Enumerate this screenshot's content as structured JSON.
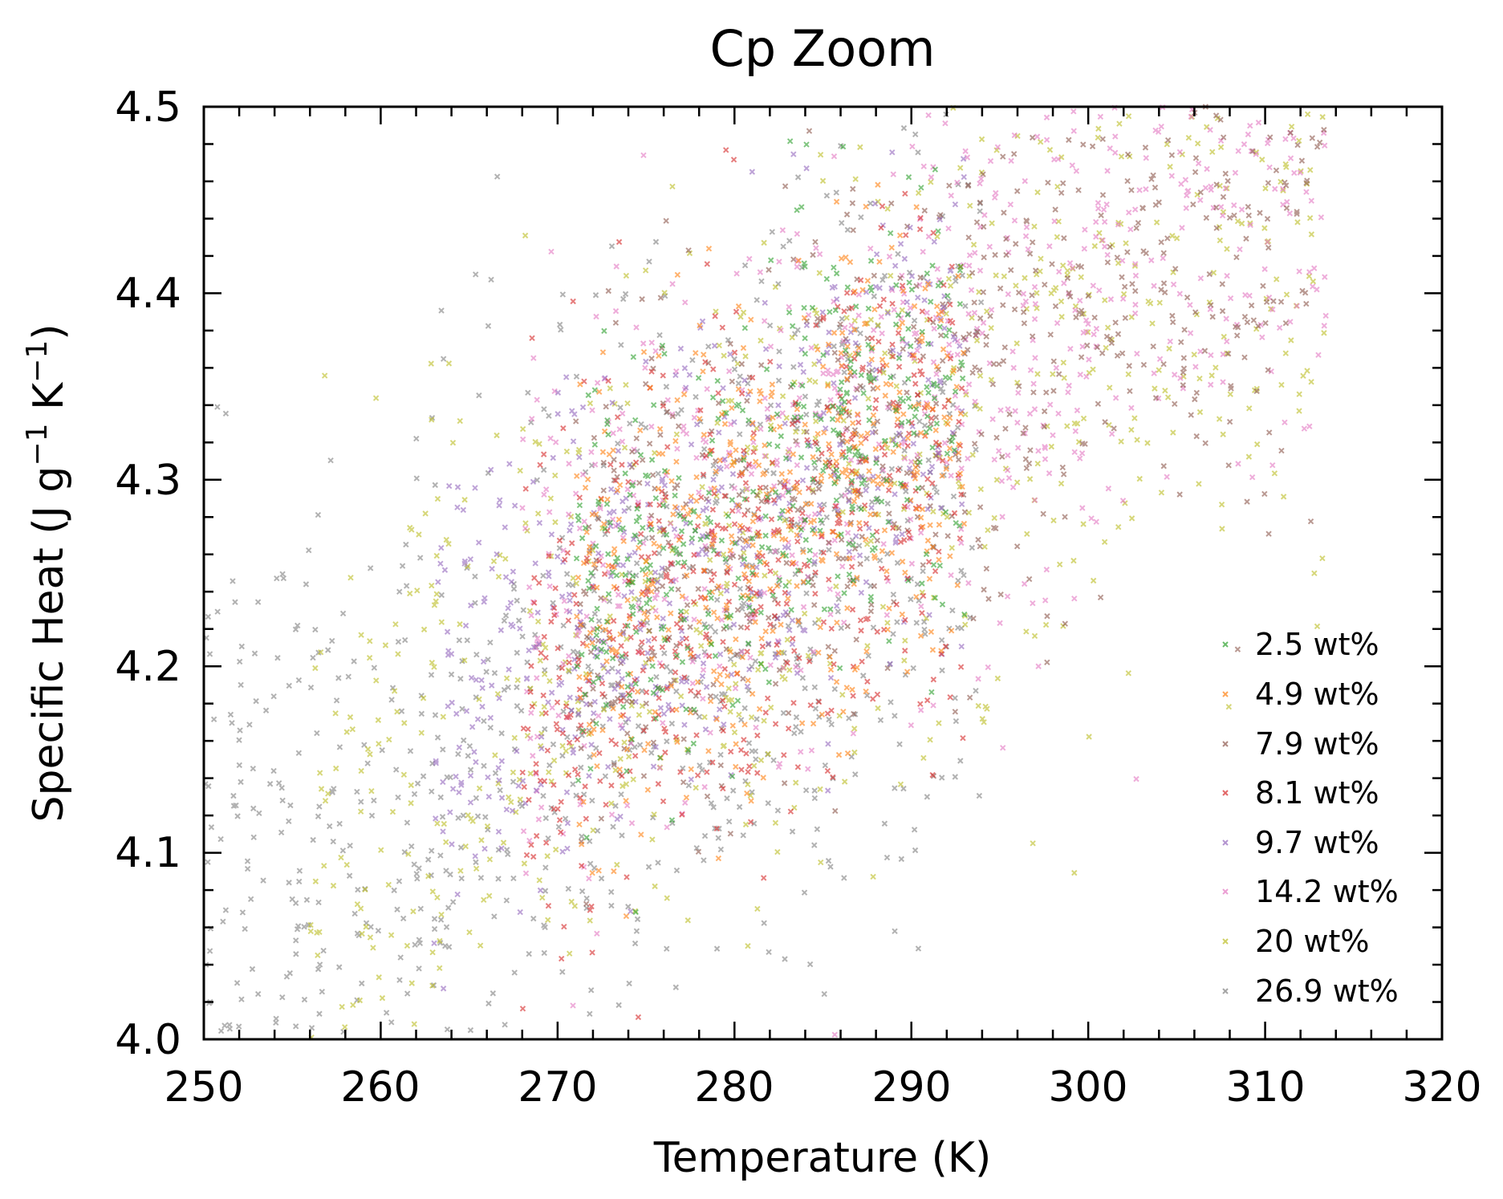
{
  "chart_data": {
    "type": "scatter",
    "title": "Cp Zoom",
    "xlabel": "Temperature (K)",
    "ylabel_parts": {
      "prefix": "Specific Heat (J g",
      "sup1": "−1",
      "middle": " K",
      "sup2": "−1",
      "suffix": ")"
    },
    "xlim": [
      250,
      320
    ],
    "ylim": [
      4.0,
      4.5
    ],
    "x_ticks": [
      "250",
      "260",
      "270",
      "280",
      "290",
      "300",
      "310",
      "320"
    ],
    "y_ticks": [
      "4.0",
      "4.1",
      "4.2",
      "4.3",
      "4.4",
      "4.5"
    ],
    "marker": "x",
    "legend_position": "lower-right",
    "grid": false,
    "series": [
      {
        "name": "2.5 wt%",
        "color": "#2ca02c",
        "n": 420,
        "x_range": [
          271,
          293
        ],
        "y_center": 4.3,
        "y_spread": 0.13
      },
      {
        "name": "4.9 wt%",
        "color": "#ff7f0e",
        "n": 480,
        "x_range": [
          271,
          293
        ],
        "y_center": 4.28,
        "y_spread": 0.15
      },
      {
        "name": "7.9 wt%",
        "color": "#8c564b",
        "n": 650,
        "x_range": [
          271,
          313.5
        ],
        "y_center": 4.29,
        "y_spread": 0.16
      },
      {
        "name": "8.1 wt%",
        "color": "#d62728",
        "n": 520,
        "x_range": [
          268,
          293
        ],
        "y_center": 4.27,
        "y_spread": 0.15
      },
      {
        "name": "9.7 wt%",
        "color": "#9467bd",
        "n": 480,
        "x_range": [
          263,
          293
        ],
        "y_center": 4.29,
        "y_spread": 0.15
      },
      {
        "name": "14.2 wt%",
        "color": "#e377c2",
        "n": 750,
        "x_range": [
          268,
          313.5
        ],
        "y_center": 4.3,
        "y_spread": 0.17
      },
      {
        "name": "20 wt%",
        "color": "#bcbd22",
        "n": 750,
        "x_range": [
          256,
          313.5
        ],
        "y_center": 4.27,
        "y_spread": 0.19
      },
      {
        "name": "26.9 wt%",
        "color": "#7f7f7f",
        "n": 900,
        "x_range": [
          250,
          294
        ],
        "y_center": 4.25,
        "y_spread": 0.22
      }
    ]
  }
}
